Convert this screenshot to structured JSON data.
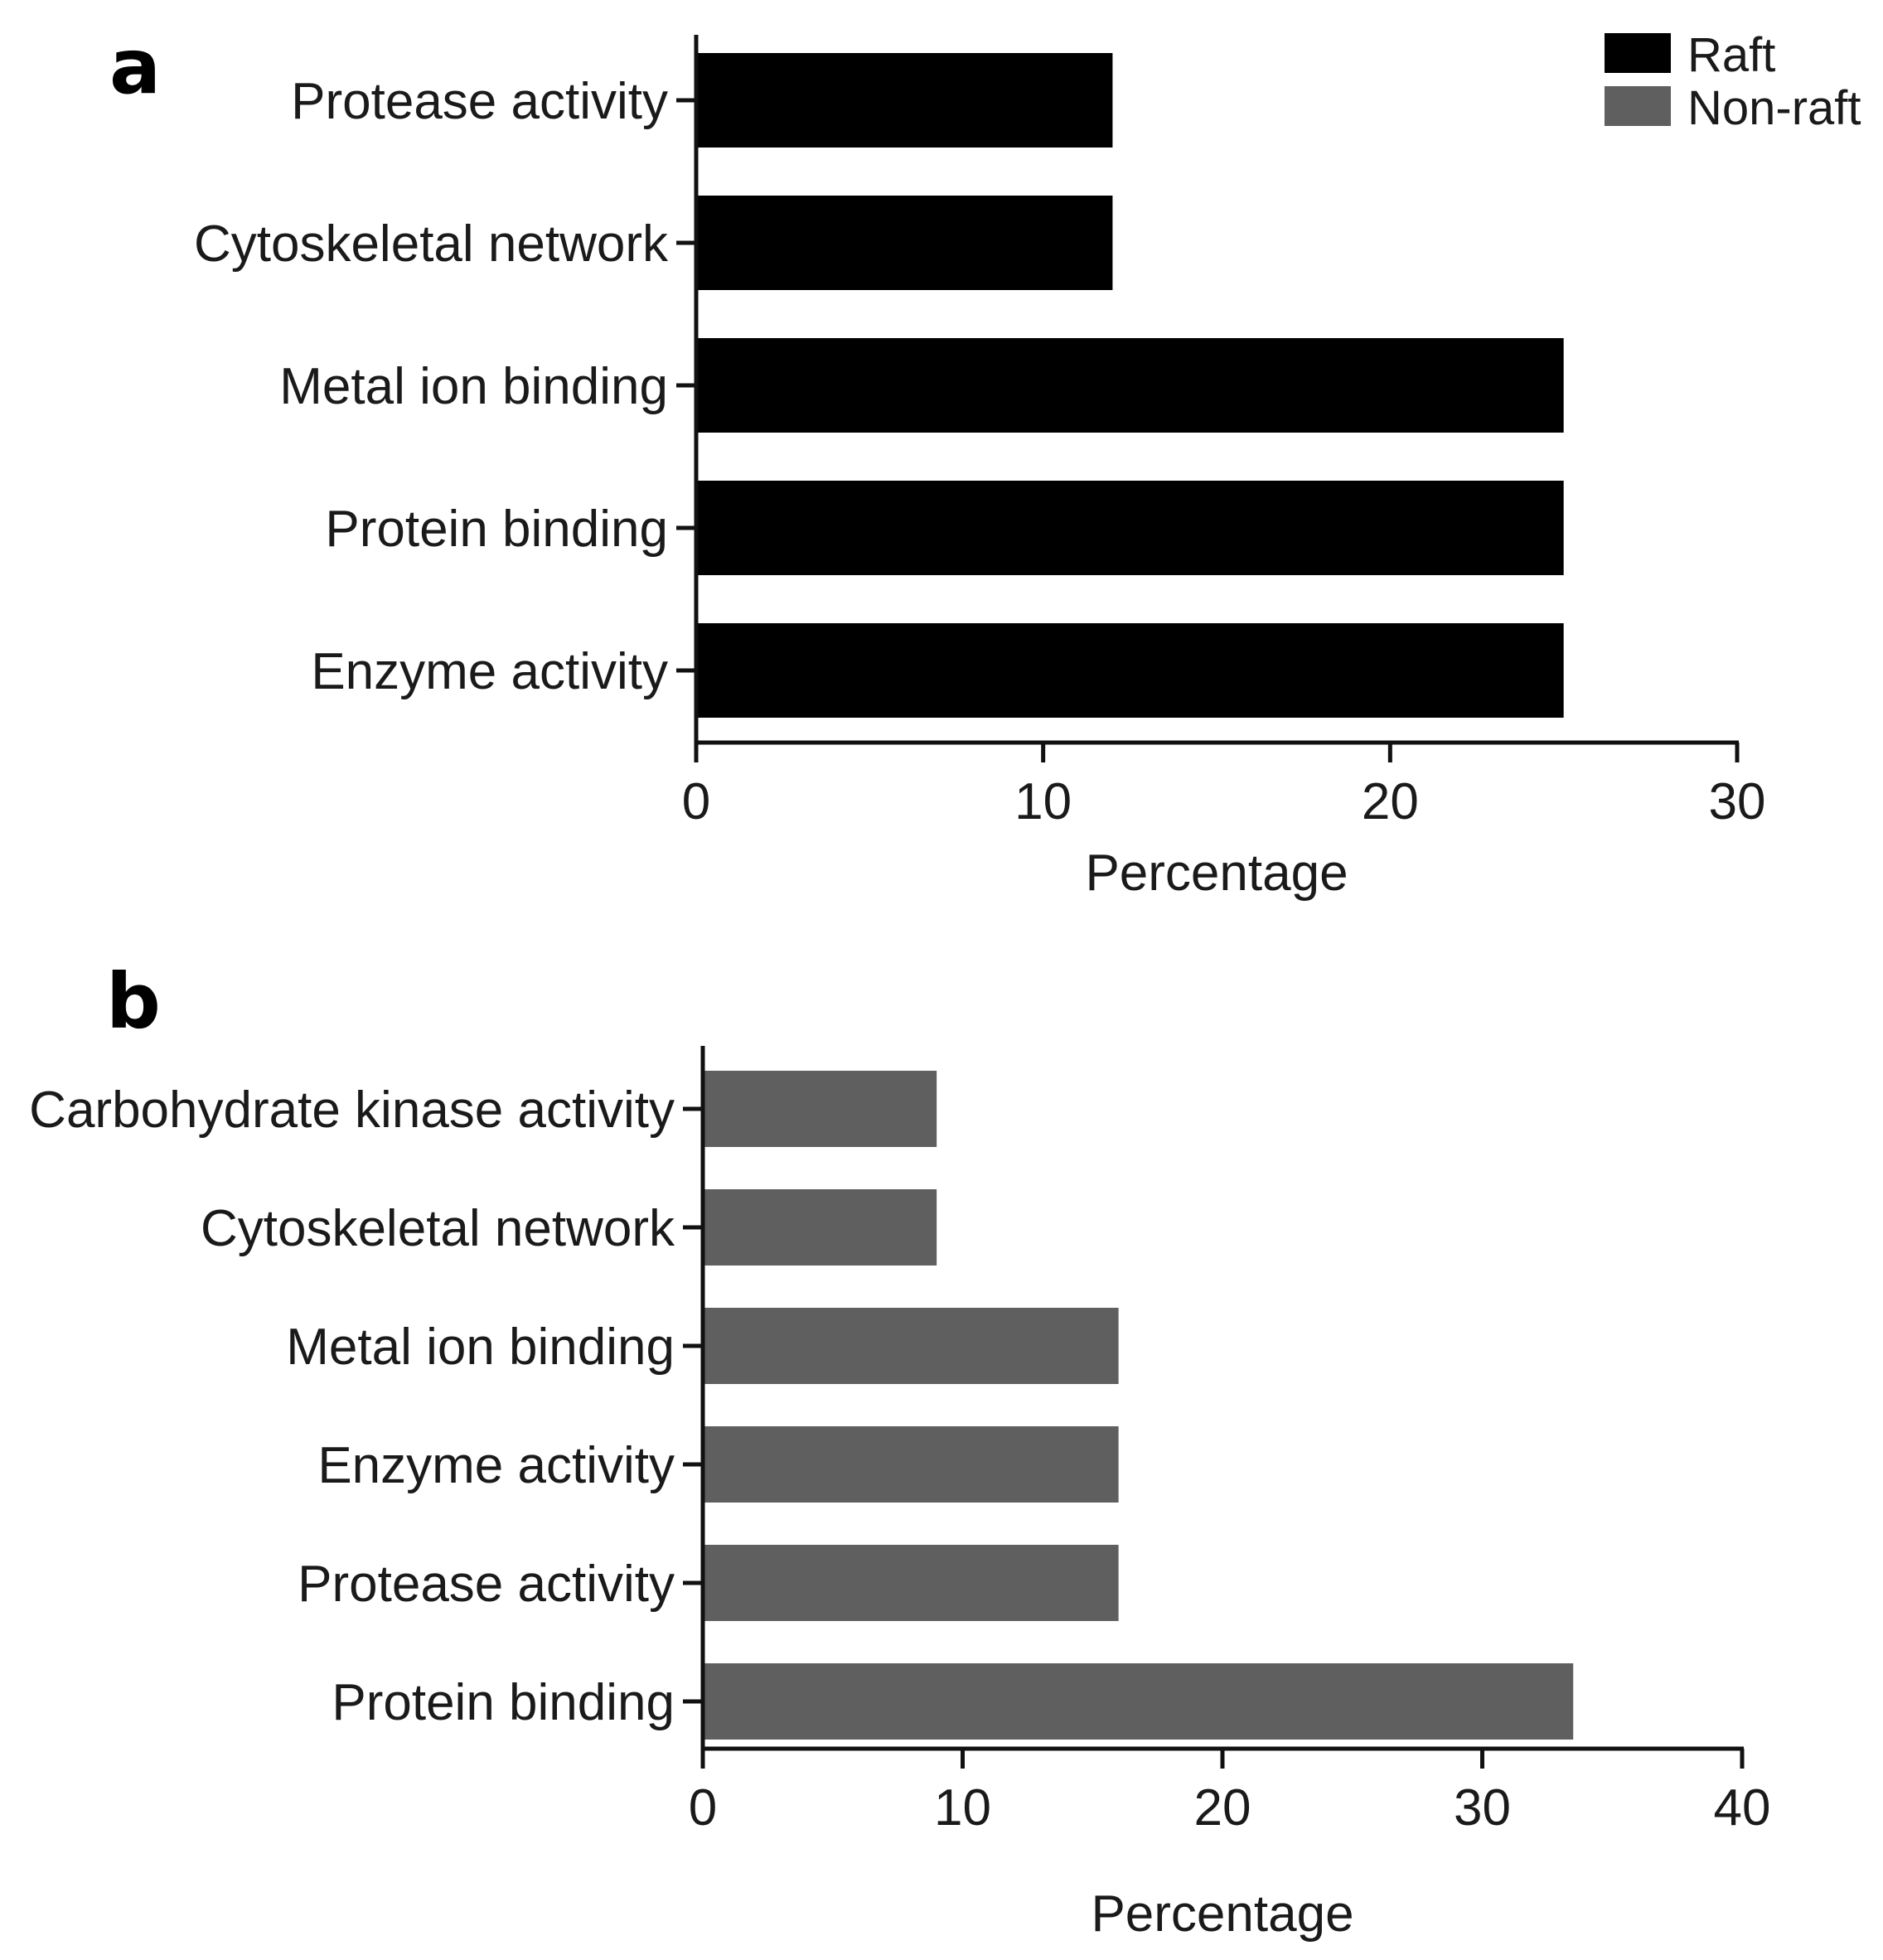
{
  "panels": {
    "a": {
      "letter": "a"
    },
    "b": {
      "letter": "b"
    }
  },
  "legend": {
    "items": [
      {
        "label": "Raft",
        "color": "#000000"
      },
      {
        "label": "Non-raft",
        "color": "#5f5f5f"
      }
    ]
  },
  "chart_data": [
    {
      "panel": "a",
      "type": "bar",
      "orientation": "horizontal",
      "categories": [
        "Protease activity",
        "Cytoskeletal network",
        "Metal ion binding",
        "Protein binding",
        "Enzyme activity"
      ],
      "series": [
        {
          "name": "Raft",
          "values": [
            12,
            12,
            25,
            25,
            25
          ],
          "color": "#000000"
        }
      ],
      "xlabel": "Percentage",
      "ylabel": "",
      "xlim": [
        0,
        30
      ],
      "xticks": [
        0,
        10,
        20,
        30
      ],
      "legend": "top-right",
      "grid": false
    },
    {
      "panel": "b",
      "type": "bar",
      "orientation": "horizontal",
      "categories": [
        "Carbohydrate kinase activity",
        "Cytoskeletal network",
        "Metal ion binding",
        "Enzyme activity",
        "Protease activity",
        "Protein binding"
      ],
      "series": [
        {
          "name": "Non-raft",
          "values": [
            9,
            9,
            16,
            16,
            16,
            33.5
          ],
          "color": "#5f5f5f"
        }
      ],
      "xlabel": "Percentage",
      "ylabel": "",
      "xlim": [
        0,
        40
      ],
      "xticks": [
        0,
        10,
        20,
        30,
        40
      ],
      "grid": false
    }
  ]
}
